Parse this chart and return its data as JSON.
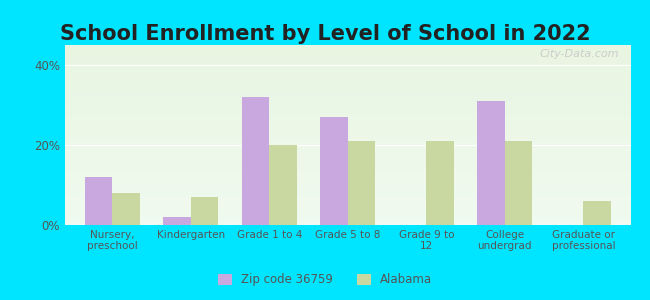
{
  "title": "School Enrollment by Level of School in 2022",
  "categories": [
    "Nursery,\npreschool",
    "Kindergarten",
    "Grade 1 to 4",
    "Grade 5 to 8",
    "Grade 9 to\n12",
    "College\nundergrad",
    "Graduate or\nprofessional"
  ],
  "zip_values": [
    12,
    2,
    32,
    27,
    0,
    31,
    0
  ],
  "alabama_values": [
    8,
    7,
    20,
    21,
    21,
    21,
    6
  ],
  "zip_color": "#c9a8e0",
  "alabama_color": "#c8d8a0",
  "background_outer": "#00e5ff",
  "background_inner_top": "#e8f5e0",
  "background_inner_bottom": "#ffffff",
  "ylim": [
    0,
    45
  ],
  "yticks": [
    0,
    20,
    40
  ],
  "ytick_labels": [
    "0%",
    "20%",
    "40%"
  ],
  "legend_labels": [
    "Zip code 36759",
    "Alabama"
  ],
  "title_fontsize": 15,
  "watermark_text": "City-Data.com",
  "bar_width": 0.35
}
